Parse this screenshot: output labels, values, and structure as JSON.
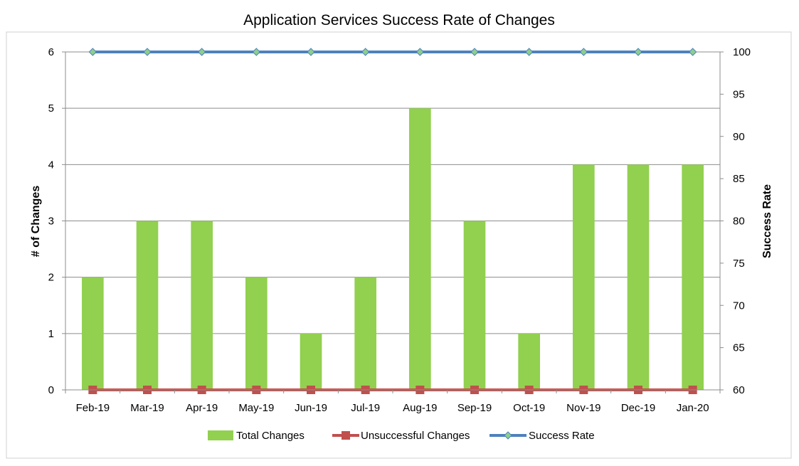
{
  "chart_data": {
    "type": "bar",
    "title": "Application Services Success Rate of Changes",
    "categories": [
      "Feb-19",
      "Mar-19",
      "Apr-19",
      "May-19",
      "Jun-19",
      "Jul-19",
      "Aug-19",
      "Sep-19",
      "Oct-19",
      "Nov-19",
      "Dec-19",
      "Jan-20"
    ],
    "ylabel": "# of Changes",
    "y2label": "Success Rate",
    "ylim": [
      0,
      6
    ],
    "yticks": [
      "0",
      "1",
      "2",
      "3",
      "4",
      "5",
      "6"
    ],
    "y2lim": [
      60,
      100
    ],
    "y2ticks": [
      "60",
      "65",
      "70",
      "75",
      "80",
      "85",
      "90",
      "95",
      "100"
    ],
    "grid": true,
    "legend_position": "bottom",
    "series": [
      {
        "name": "Total Changes",
        "kind": "bar",
        "axis": "left",
        "color": "#92d050",
        "values": [
          2,
          3,
          3,
          2,
          1,
          2,
          5,
          3,
          1,
          4,
          4,
          4
        ]
      },
      {
        "name": "Unsuccessful Changes",
        "kind": "line",
        "marker": "square",
        "axis": "left",
        "color": "#c0504d",
        "values": [
          0,
          0,
          0,
          0,
          0,
          0,
          0,
          0,
          0,
          0,
          0,
          0
        ]
      },
      {
        "name": "Success Rate",
        "kind": "line",
        "marker": "diamond",
        "axis": "right",
        "color": "#4f81bd",
        "marker_color": "#8ccf8c",
        "values": [
          100,
          100,
          100,
          100,
          100,
          100,
          100,
          100,
          100,
          100,
          100,
          100
        ]
      }
    ]
  }
}
